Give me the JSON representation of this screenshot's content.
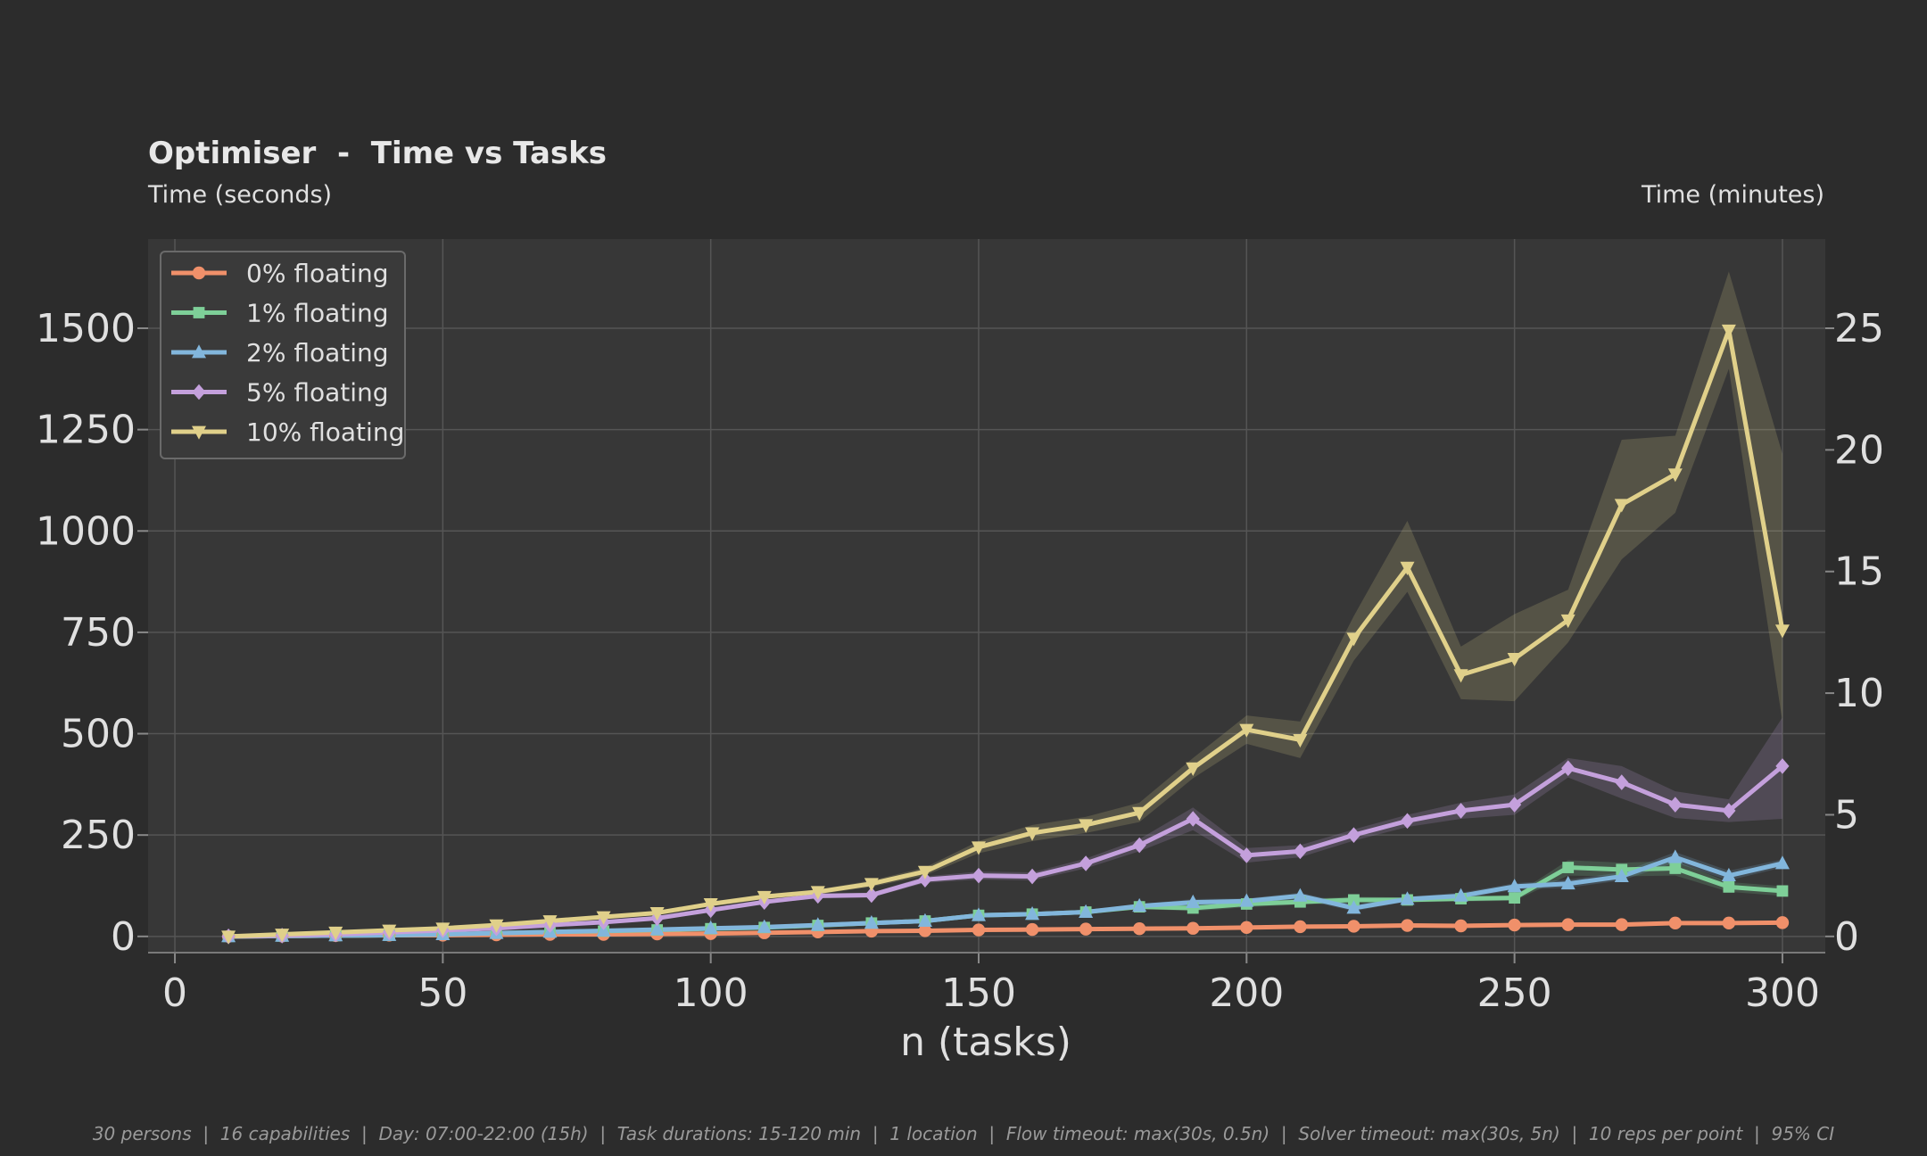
{
  "chart_data": {
    "type": "line",
    "title": "Optimiser  -  Time vs Tasks",
    "ylabel": "Time (seconds)",
    "y2label": "Time (minutes)",
    "xlabel": "n (tasks)",
    "xlim": [
      -5,
      308
    ],
    "ylim": [
      -40,
      1720
    ],
    "x_ticks": [
      0,
      50,
      100,
      150,
      200,
      250,
      300
    ],
    "y_ticks": [
      0,
      250,
      500,
      750,
      1000,
      1250,
      1500
    ],
    "y2_ticks": [
      0,
      5,
      10,
      15,
      20,
      25
    ],
    "grid": true,
    "legend_position": "top-left",
    "footnote": "30 persons  |  16 capabilities  |  Day: 07:00-22:00 (15h)  |  Task durations: 15-120 min  |  1 location  |  Flow timeout: max(30s, 0.5n)  |  Solver timeout: max(30s, 5n)  |  10 reps per point  |  95% CI",
    "x": [
      10,
      20,
      30,
      40,
      50,
      60,
      70,
      80,
      90,
      100,
      110,
      120,
      130,
      140,
      150,
      160,
      170,
      180,
      190,
      200,
      210,
      220,
      230,
      240,
      250,
      260,
      270,
      280,
      290,
      300
    ],
    "series": [
      {
        "name": "0% floating",
        "color": "#f0906a",
        "marker": "circle",
        "values": [
          0,
          1,
          2,
          3,
          3,
          4,
          5,
          5,
          6,
          7,
          9,
          11,
          13,
          14,
          16,
          17,
          18,
          19,
          20,
          22,
          24,
          25,
          27,
          26,
          28,
          29,
          29,
          33,
          33,
          34
        ],
        "ci_lower": [
          0,
          1,
          2,
          3,
          3,
          4,
          5,
          5,
          6,
          7,
          9,
          11,
          13,
          14,
          16,
          17,
          18,
          19,
          20,
          22,
          24,
          25,
          27,
          26,
          28,
          29,
          29,
          33,
          33,
          34
        ],
        "ci_upper": [
          0,
          1,
          2,
          3,
          3,
          4,
          5,
          5,
          6,
          7,
          9,
          11,
          13,
          14,
          16,
          17,
          18,
          19,
          20,
          22,
          24,
          25,
          27,
          26,
          28,
          29,
          29,
          33,
          33,
          34
        ]
      },
      {
        "name": "1% floating",
        "color": "#7ecf98",
        "marker": "square",
        "values": [
          0,
          1,
          2,
          3,
          5,
          8,
          11,
          13,
          16,
          19,
          22,
          27,
          33,
          38,
          52,
          55,
          60,
          73,
          70,
          80,
          85,
          90,
          90,
          93,
          95,
          170,
          165,
          168,
          122,
          112
        ],
        "ci_lower": [
          0,
          1,
          2,
          3,
          5,
          8,
          11,
          13,
          16,
          19,
          22,
          27,
          33,
          38,
          48,
          50,
          55,
          68,
          62,
          72,
          78,
          82,
          84,
          86,
          88,
          150,
          148,
          150,
          110,
          100
        ],
        "ci_upper": [
          0,
          1,
          2,
          3,
          5,
          8,
          11,
          13,
          16,
          19,
          22,
          27,
          33,
          38,
          56,
          60,
          65,
          78,
          78,
          88,
          92,
          98,
          96,
          100,
          102,
          188,
          182,
          186,
          134,
          124
        ]
      },
      {
        "name": "2% floating",
        "color": "#82b6dc",
        "marker": "triangle-up",
        "values": [
          0,
          1,
          2,
          3,
          5,
          8,
          11,
          14,
          17,
          20,
          23,
          28,
          33,
          38,
          52,
          55,
          60,
          75,
          84,
          87,
          100,
          70,
          92,
          100,
          123,
          130,
          148,
          195,
          150,
          180
        ],
        "ci_lower": [
          0,
          1,
          2,
          3,
          5,
          8,
          11,
          14,
          17,
          20,
          23,
          28,
          33,
          38,
          48,
          50,
          55,
          70,
          76,
          80,
          92,
          62,
          86,
          92,
          115,
          120,
          138,
          182,
          138,
          170
        ],
        "ci_upper": [
          0,
          1,
          2,
          3,
          5,
          8,
          11,
          14,
          17,
          20,
          23,
          28,
          33,
          38,
          56,
          60,
          65,
          80,
          92,
          94,
          108,
          78,
          98,
          108,
          131,
          140,
          158,
          208,
          162,
          190
        ]
      },
      {
        "name": "5% floating",
        "color": "#c4a0dc",
        "marker": "diamond",
        "values": [
          0,
          2,
          5,
          10,
          15,
          20,
          28,
          35,
          45,
          65,
          85,
          100,
          102,
          140,
          150,
          148,
          180,
          225,
          290,
          200,
          210,
          250,
          285,
          310,
          325,
          415,
          380,
          325,
          310,
          420
        ],
        "ci_lower": [
          0,
          2,
          5,
          10,
          15,
          20,
          28,
          35,
          45,
          62,
          80,
          94,
          96,
          132,
          140,
          138,
          168,
          210,
          262,
          182,
          195,
          236,
          270,
          290,
          300,
          392,
          340,
          292,
          282,
          290
        ],
        "ci_upper": [
          0,
          2,
          5,
          10,
          15,
          20,
          28,
          35,
          45,
          68,
          90,
          106,
          108,
          148,
          160,
          158,
          192,
          240,
          318,
          218,
          225,
          264,
          300,
          330,
          350,
          440,
          420,
          358,
          338,
          540
        ]
      },
      {
        "name": "10% floating",
        "color": "#e0d08a",
        "marker": "triangle-down",
        "values": [
          0,
          5,
          10,
          15,
          20,
          28,
          38,
          48,
          58,
          80,
          98,
          110,
          130,
          160,
          220,
          255,
          275,
          305,
          415,
          510,
          485,
          735,
          910,
          645,
          685,
          780,
          1065,
          1140,
          1495,
          755
        ],
        "ci_lower": [
          0,
          5,
          10,
          15,
          20,
          28,
          38,
          48,
          58,
          74,
          92,
          104,
          122,
          150,
          205,
          235,
          255,
          282,
          390,
          475,
          440,
          680,
          850,
          585,
          580,
          725,
          930,
          1045,
          1400,
          530
        ],
        "ci_upper": [
          0,
          5,
          10,
          15,
          20,
          28,
          38,
          48,
          58,
          86,
          104,
          116,
          138,
          170,
          235,
          275,
          295,
          330,
          440,
          545,
          530,
          790,
          1025,
          715,
          795,
          855,
          1225,
          1235,
          1640,
          1190
        ]
      }
    ]
  }
}
